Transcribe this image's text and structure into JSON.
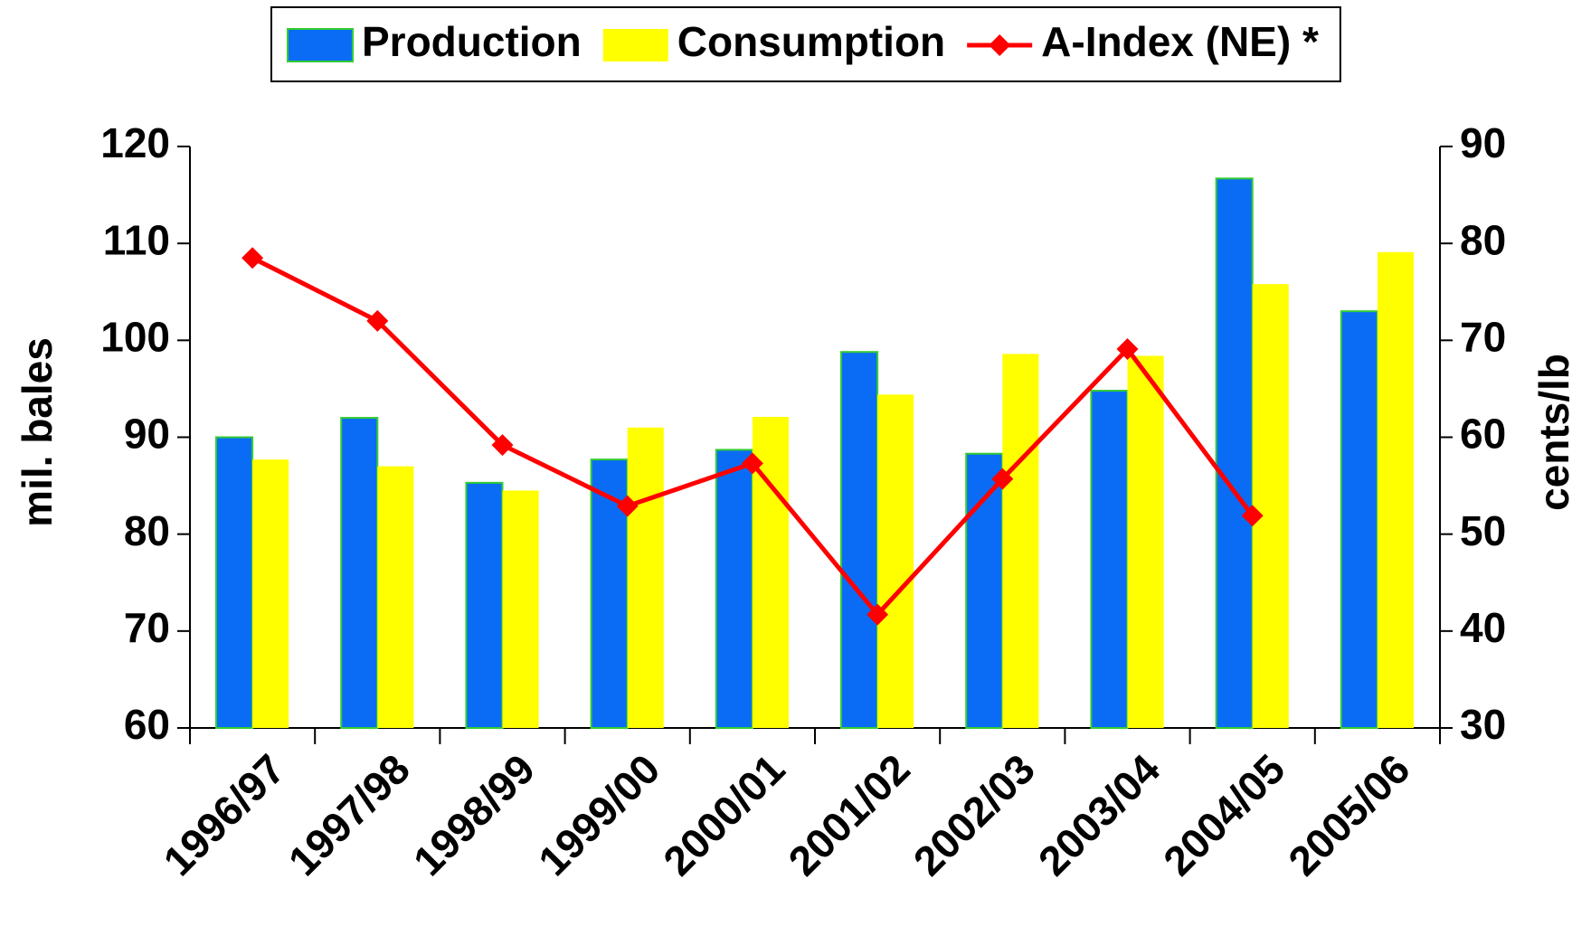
{
  "chart_data": {
    "type": "bar",
    "categories": [
      "1996/97",
      "1997/98",
      "1998/99",
      "1999/00",
      "2000/01",
      "2001/02",
      "2002/03",
      "2003/04",
      "2004/05",
      "2005/06"
    ],
    "series": [
      {
        "name": "Production",
        "type": "bar",
        "color": "#0a6cf5",
        "values": [
          90,
          92,
          85.3,
          87.7,
          88.7,
          98.8,
          88.3,
          94.8,
          116.7,
          103
        ]
      },
      {
        "name": "Consumption",
        "type": "bar",
        "color": "#ffff00",
        "values": [
          87.7,
          87,
          84.5,
          91,
          92.1,
          94.4,
          98.6,
          98.4,
          105.8,
          109.1
        ]
      },
      {
        "name": "A-Index (NE) *",
        "type": "line",
        "axis": "y2",
        "color": "#ff0000",
        "values": [
          78.5,
          72,
          59.2,
          52.9,
          57.3,
          41.7,
          55.7,
          69.1,
          51.9,
          null
        ]
      }
    ],
    "y_label": "mil. bales",
    "y2_label": "cents/lb",
    "ylim": [
      60,
      120
    ],
    "yticks": [
      60,
      70,
      80,
      90,
      100,
      110,
      120
    ],
    "y2lim": [
      30,
      90
    ],
    "y2ticks": [
      30,
      40,
      50,
      60,
      70,
      80,
      90
    ],
    "legend": "top",
    "grid": false
  }
}
